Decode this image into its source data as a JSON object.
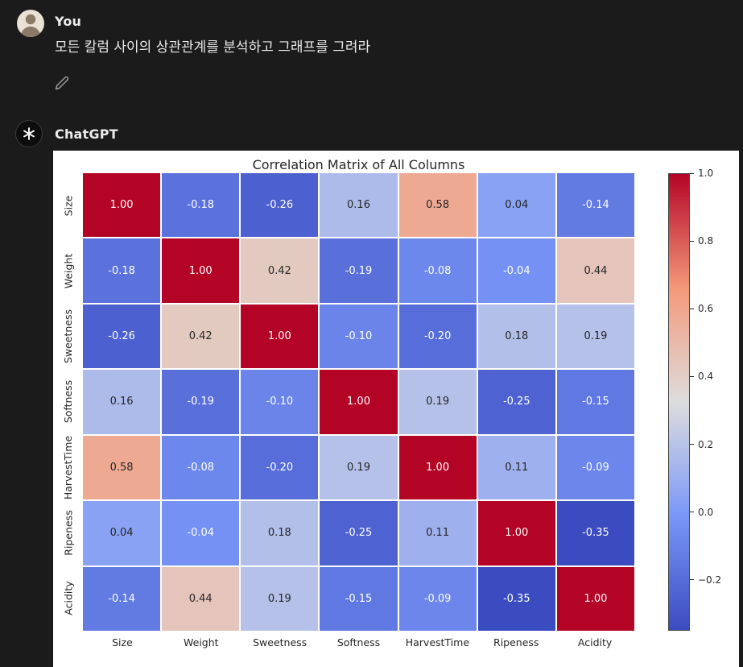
{
  "chat": {
    "user": {
      "name": "You",
      "message": "모든 칼럼 사이의 상관관계를 분석하고 그래프를 그려라"
    },
    "assistant": {
      "name": "ChatGPT"
    }
  },
  "icons": {
    "edit": "pencil-icon",
    "assistant_logo": "openai-logo-icon",
    "user_photo": "user-photo-avatar"
  },
  "colors": {
    "background": "#1b1b1b",
    "panel_background": "#ffffff",
    "text_primary": "#ececec",
    "icon_muted": "#9b9b9b",
    "heatmap_text_dark": "#262626",
    "heatmap_text_light": "#ffffff"
  },
  "chart_data": {
    "type": "heatmap",
    "title": "Correlation Matrix of All Columns",
    "colormap": "coolwarm",
    "labels": [
      "Size",
      "Weight",
      "Sweetness",
      "Softness",
      "HarvestTime",
      "Ripeness",
      "Acidity"
    ],
    "matrix": [
      [
        1.0,
        -0.18,
        -0.26,
        0.16,
        0.58,
        0.04,
        -0.14
      ],
      [
        -0.18,
        1.0,
        0.42,
        -0.19,
        -0.08,
        -0.04,
        0.44
      ],
      [
        -0.26,
        0.42,
        1.0,
        -0.1,
        -0.2,
        0.18,
        0.19
      ],
      [
        0.16,
        -0.19,
        -0.1,
        1.0,
        0.19,
        -0.25,
        -0.15
      ],
      [
        0.58,
        -0.08,
        -0.2,
        0.19,
        1.0,
        0.11,
        -0.09
      ],
      [
        0.04,
        -0.04,
        0.18,
        -0.25,
        0.11,
        1.0,
        -0.35
      ],
      [
        -0.14,
        0.44,
        0.19,
        -0.15,
        -0.09,
        -0.35,
        1.0
      ]
    ],
    "vmin": -0.35,
    "vmax": 1.0,
    "colorbar_ticks": [
      1.0,
      0.8,
      0.6,
      0.4,
      0.2,
      0.0,
      -0.2
    ],
    "colorbar_tick_labels": [
      "1.0",
      "0.8",
      "0.6",
      "0.4",
      "0.2",
      "0.0",
      "−0.2"
    ],
    "legend_position": "right",
    "grid": false
  }
}
